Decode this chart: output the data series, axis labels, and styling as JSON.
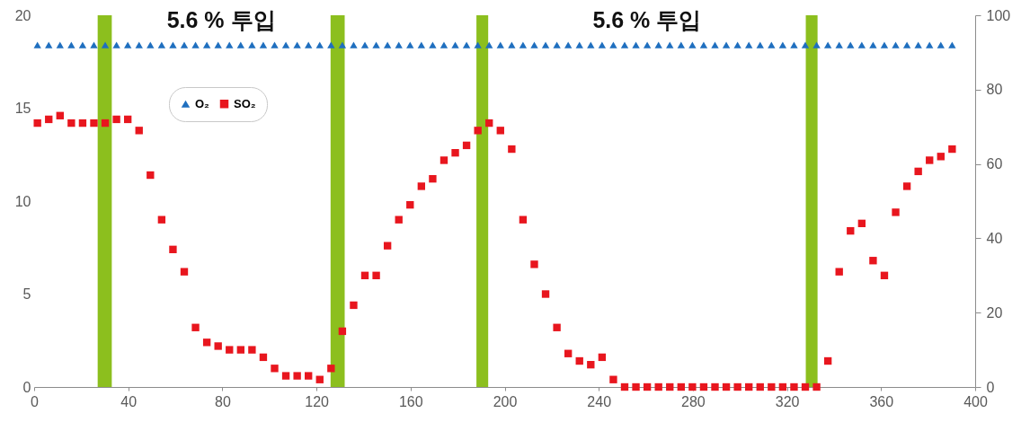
{
  "chart_data": {
    "type": "scatter",
    "annotations": [
      "5.6 % 투입",
      "5.6 % 투입"
    ],
    "x": [
      1.4,
      6.2,
      11,
      15.8,
      20.6,
      25.4,
      30.2,
      35,
      39.8,
      44.6,
      49.4,
      54.2,
      59,
      63.8,
      68.6,
      73.4,
      78.2,
      83,
      87.8,
      92.6,
      97.4,
      102.2,
      107,
      111.8,
      116.6,
      121.4,
      126.2,
      131,
      135.8,
      140.6,
      145.4,
      150.2,
      155,
      159.8,
      164.6,
      169.4,
      174.2,
      179,
      183.8,
      188.6,
      193.4,
      198.2,
      203,
      207.8,
      212.6,
      217.4,
      222.2,
      227,
      231.8,
      236.6,
      241.4,
      246.2,
      251,
      255.8,
      260.6,
      265.4,
      270.2,
      275,
      279.8,
      284.6,
      289.4,
      294.2,
      299,
      303.8,
      308.6,
      313.4,
      318.2,
      323,
      327.8,
      332.6,
      337.4,
      342.2,
      347,
      351.8,
      356.6,
      361.4,
      366.2,
      371,
      375.8,
      380.6,
      385.4,
      390.2
    ],
    "series": [
      {
        "name": "O₂",
        "color": "#1f6fbf",
        "marker": "triangle",
        "values": [
          18.4,
          18.4,
          18.4,
          18.4,
          18.4,
          18.4,
          18.4,
          18.4,
          18.4,
          18.4,
          18.4,
          18.4,
          18.4,
          18.4,
          18.4,
          18.4,
          18.4,
          18.4,
          18.4,
          18.4,
          18.4,
          18.4,
          18.4,
          18.4,
          18.4,
          18.4,
          18.4,
          18.4,
          18.4,
          18.4,
          18.4,
          18.4,
          18.4,
          18.4,
          18.4,
          18.4,
          18.4,
          18.4,
          18.4,
          18.4,
          18.4,
          18.4,
          18.4,
          18.4,
          18.4,
          18.4,
          18.4,
          18.4,
          18.4,
          18.4,
          18.4,
          18.4,
          18.4,
          18.4,
          18.4,
          18.4,
          18.4,
          18.4,
          18.4,
          18.4,
          18.4,
          18.4,
          18.4,
          18.4,
          18.4,
          18.4,
          18.4,
          18.4,
          18.4,
          18.4,
          18.4,
          18.4,
          18.4,
          18.4,
          18.4,
          18.4,
          18.4,
          18.4,
          18.4,
          18.4,
          18.4,
          18.4
        ]
      },
      {
        "name": "SO₂",
        "color": "#e8161e",
        "marker": "square",
        "axis": "y2",
        "values": [
          71,
          72,
          73,
          71,
          71,
          71,
          71,
          72,
          72,
          69,
          57,
          45,
          37,
          31,
          16,
          12,
          11,
          10,
          10,
          10,
          8,
          5,
          3,
          3,
          3,
          2,
          5,
          15,
          22,
          30,
          30,
          38,
          45,
          49,
          54,
          56,
          61,
          63,
          65,
          69,
          71,
          69,
          64,
          45,
          33,
          25,
          16,
          9,
          7,
          6,
          8,
          2,
          0,
          0,
          0,
          0,
          0,
          0,
          0,
          0,
          0,
          0,
          0,
          0,
          0,
          0,
          0,
          0,
          0,
          0,
          7,
          31,
          42,
          44,
          34,
          30,
          47,
          54,
          58,
          61,
          62,
          64
        ]
      }
    ],
    "bands": [
      {
        "axis": "x",
        "from": 27,
        "to": 33,
        "color": "#8cbf1e"
      },
      {
        "axis": "x",
        "from": 126,
        "to": 132,
        "color": "#8cbf1e"
      },
      {
        "axis": "x",
        "from": 188,
        "to": 193,
        "color": "#8cbf1e"
      },
      {
        "axis": "x",
        "from": 328,
        "to": 333,
        "color": "#8cbf1e"
      }
    ],
    "xlim": [
      0,
      400
    ],
    "xticks": [
      0,
      40,
      80,
      120,
      160,
      200,
      240,
      280,
      320,
      360,
      400
    ],
    "ylim": [
      0,
      20
    ],
    "yticks": [
      0,
      5,
      10,
      15,
      20
    ],
    "y2lim": [
      0,
      100
    ],
    "y2ticks": [
      0,
      20,
      40,
      60,
      80,
      100
    ],
    "grid": false,
    "legend": "top left"
  }
}
